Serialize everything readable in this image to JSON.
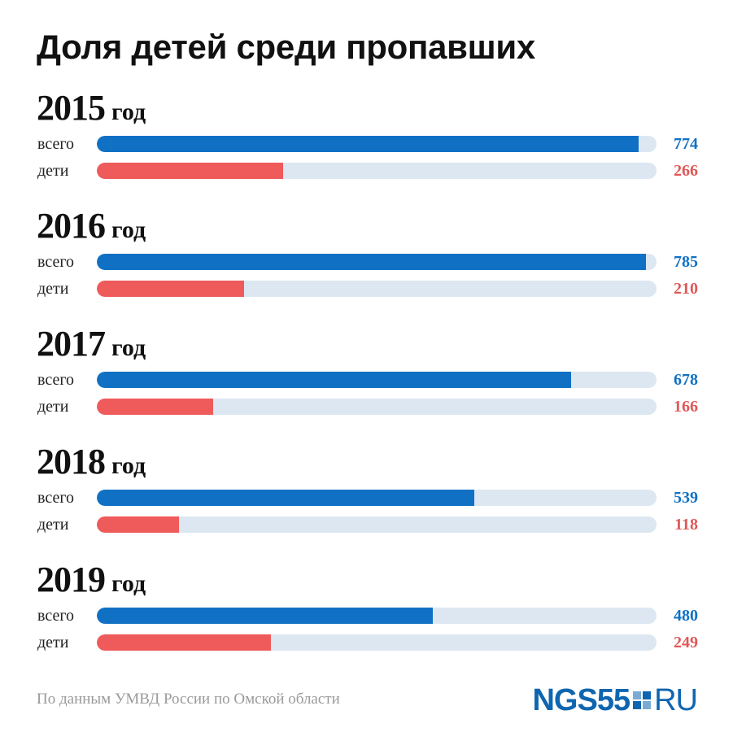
{
  "title": "Доля детей среди пропавших",
  "colors": {
    "total": "#1071c4",
    "children": "#ef5a5a",
    "track": "#dce7f2",
    "total_value": "#1071c4",
    "children_value": "#e05858",
    "source": "#9a9a9a",
    "logo": "#0f66b0"
  },
  "year_suffix": "год",
  "row_labels": {
    "total": "всего",
    "children": "дети"
  },
  "chart_data": {
    "type": "bar",
    "orientation": "horizontal",
    "title": "Доля детей среди пропавших",
    "xlim": [
      0,
      800
    ],
    "groups": [
      {
        "year": "2015",
        "total": 774,
        "children": 266
      },
      {
        "year": "2016",
        "total": 785,
        "children": 210
      },
      {
        "year": "2017",
        "total": 678,
        "children": 166
      },
      {
        "year": "2018",
        "total": 539,
        "children": 118
      },
      {
        "year": "2019",
        "total": 480,
        "children": 249
      }
    ]
  },
  "source": "По данным УМВД России по Омской области",
  "logo": {
    "main": "NGS55",
    "suffix": "RU"
  }
}
